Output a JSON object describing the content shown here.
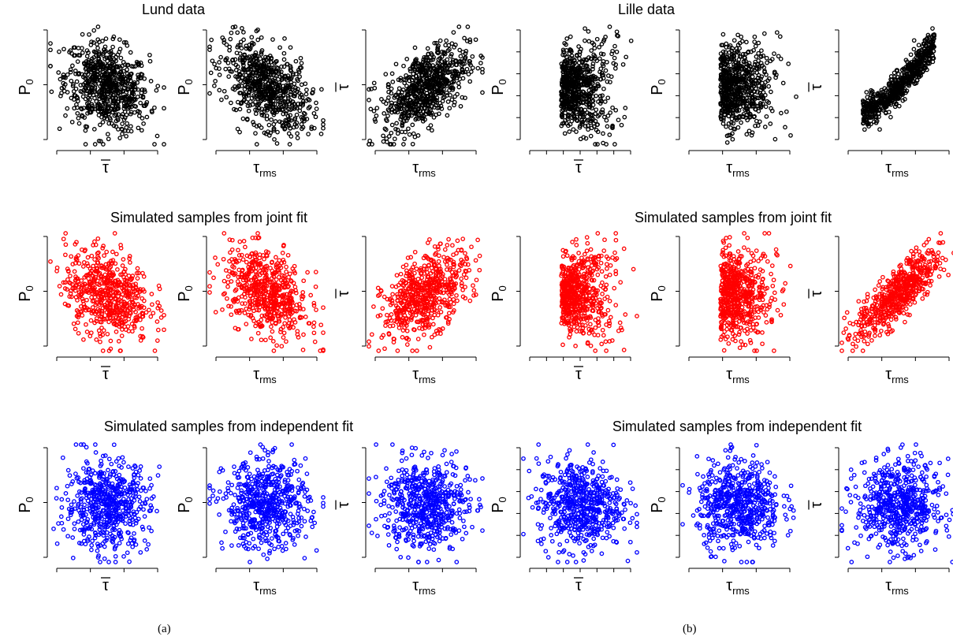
{
  "captions": {
    "a": "(a)",
    "b": "(b)"
  },
  "colors": {
    "lund_data": "#000000",
    "joint_fit": "#ff0000",
    "independent_fit": "#0000ff"
  },
  "row_titles": {
    "a": [
      "Lund  data",
      "Simulated samples from joint fit",
      "Simulated samples from independent fit"
    ],
    "b": [
      "Lille  data",
      "Simulated samples from joint fit",
      "Simulated samples from independent fit"
    ]
  },
  "axis_symbols": {
    "tau_bar": "τ",
    "tau_rms": "τ",
    "rms_subscript": "rms",
    "p0": "P",
    "p0_subscript": "0"
  },
  "chart_data": [
    {
      "type": "scatter",
      "panel": "a",
      "row": 0,
      "col": 0,
      "color": "#000000",
      "xlabel": "tau_bar",
      "ylabel": "P0",
      "correlation": -0.25,
      "n_points": 700
    },
    {
      "type": "scatter",
      "panel": "a",
      "row": 0,
      "col": 1,
      "color": "#000000",
      "xlabel": "tau_rms",
      "ylabel": "P0",
      "correlation": -0.45,
      "n_points": 700
    },
    {
      "type": "scatter",
      "panel": "a",
      "row": 0,
      "col": 2,
      "color": "#000000",
      "xlabel": "tau_rms",
      "ylabel": "tau_bar",
      "correlation": 0.55,
      "n_points": 700
    },
    {
      "type": "scatter",
      "panel": "a",
      "row": 1,
      "col": 0,
      "color": "#ff0000",
      "xlabel": "tau_bar",
      "ylabel": "P0",
      "correlation": -0.2,
      "n_points": 600
    },
    {
      "type": "scatter",
      "panel": "a",
      "row": 1,
      "col": 1,
      "color": "#ff0000",
      "xlabel": "tau_rms",
      "ylabel": "P0",
      "correlation": -0.4,
      "n_points": 600
    },
    {
      "type": "scatter",
      "panel": "a",
      "row": 1,
      "col": 2,
      "color": "#ff0000",
      "xlabel": "tau_rms",
      "ylabel": "tau_bar",
      "correlation": 0.5,
      "n_points": 600
    },
    {
      "type": "scatter",
      "panel": "a",
      "row": 2,
      "col": 0,
      "color": "#0000ff",
      "xlabel": "tau_bar",
      "ylabel": "P0",
      "correlation": 0.0,
      "n_points": 600
    },
    {
      "type": "scatter",
      "panel": "a",
      "row": 2,
      "col": 1,
      "color": "#0000ff",
      "xlabel": "tau_rms",
      "ylabel": "P0",
      "correlation": 0.0,
      "n_points": 600
    },
    {
      "type": "scatter",
      "panel": "a",
      "row": 2,
      "col": 2,
      "color": "#0000ff",
      "xlabel": "tau_rms",
      "ylabel": "tau_bar",
      "correlation": 0.0,
      "n_points": 600
    },
    {
      "type": "scatter",
      "panel": "b",
      "row": 0,
      "col": 0,
      "color": "#000000",
      "xlabel": "tau_bar",
      "ylabel": "P0",
      "correlation": -0.6,
      "n_points": 650
    },
    {
      "type": "scatter",
      "panel": "b",
      "row": 0,
      "col": 1,
      "color": "#000000",
      "xlabel": "tau_rms",
      "ylabel": "P0",
      "correlation": -0.3,
      "n_points": 650
    },
    {
      "type": "scatter",
      "panel": "b",
      "row": 0,
      "col": 2,
      "color": "#000000",
      "xlabel": "tau_rms",
      "ylabel": "tau_bar",
      "correlation": 0.9,
      "n_points": 650
    },
    {
      "type": "scatter",
      "panel": "b",
      "row": 1,
      "col": 0,
      "color": "#ff0000",
      "xlabel": "tau_bar",
      "ylabel": "P0",
      "correlation": -0.6,
      "n_points": 600
    },
    {
      "type": "scatter",
      "panel": "b",
      "row": 1,
      "col": 1,
      "color": "#ff0000",
      "xlabel": "tau_rms",
      "ylabel": "P0",
      "correlation": -0.3,
      "n_points": 600
    },
    {
      "type": "scatter",
      "panel": "b",
      "row": 1,
      "col": 2,
      "color": "#ff0000",
      "xlabel": "tau_rms",
      "ylabel": "tau_bar",
      "correlation": 0.8,
      "n_points": 600
    },
    {
      "type": "scatter",
      "panel": "b",
      "row": 2,
      "col": 0,
      "color": "#0000ff",
      "xlabel": "tau_bar",
      "ylabel": "P0",
      "correlation": 0.0,
      "n_points": 600
    },
    {
      "type": "scatter",
      "panel": "b",
      "row": 2,
      "col": 1,
      "color": "#0000ff",
      "xlabel": "tau_rms",
      "ylabel": "P0",
      "correlation": 0.0,
      "n_points": 600
    },
    {
      "type": "scatter",
      "panel": "b",
      "row": 2,
      "col": 2,
      "color": "#0000ff",
      "xlabel": "tau_rms",
      "ylabel": "tau_bar",
      "correlation": 0.0,
      "n_points": 600
    }
  ]
}
